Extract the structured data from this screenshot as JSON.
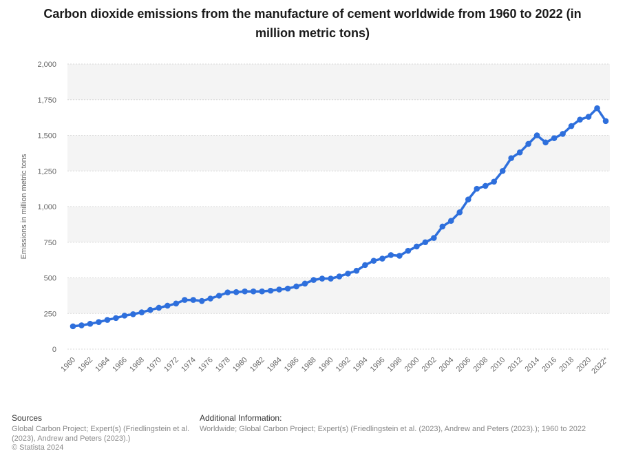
{
  "chart_data": {
    "type": "line",
    "title": "Carbon dioxide emissions from the manufacture of cement worldwide from 1960 to 2022 (in million metric tons)",
    "ylabel": "Emissions in million metric tons",
    "xlabel": "",
    "ylim": [
      0,
      2000
    ],
    "y_ticks": [
      "0",
      "250",
      "500",
      "750",
      "1,000",
      "1,250",
      "1,500",
      "1,750",
      "2,000"
    ],
    "x_tick_labels": [
      "1960",
      "1962",
      "1964",
      "1966",
      "1968",
      "1970",
      "1972",
      "1974",
      "1976",
      "1978",
      "1980",
      "1982",
      "1984",
      "1986",
      "1988",
      "1990",
      "1992",
      "1994",
      "1996",
      "1998",
      "2000",
      "2002",
      "2004",
      "2006",
      "2008",
      "2010",
      "2012",
      "2014",
      "2016",
      "2018",
      "2020",
      "2022*"
    ],
    "grid": true,
    "legend": "none",
    "color": "#2e6fdc",
    "x": [
      1960,
      1961,
      1962,
      1963,
      1964,
      1965,
      1966,
      1967,
      1968,
      1969,
      1970,
      1971,
      1972,
      1973,
      1974,
      1975,
      1976,
      1977,
      1978,
      1979,
      1980,
      1981,
      1982,
      1983,
      1984,
      1985,
      1986,
      1987,
      1988,
      1989,
      1990,
      1991,
      1992,
      1993,
      1994,
      1995,
      1996,
      1997,
      1998,
      1999,
      2000,
      2001,
      2002,
      2003,
      2004,
      2005,
      2006,
      2007,
      2008,
      2009,
      2010,
      2011,
      2012,
      2013,
      2014,
      2015,
      2016,
      2017,
      2018,
      2019,
      2020,
      2021,
      2022
    ],
    "values": [
      160,
      167,
      178,
      190,
      205,
      218,
      235,
      245,
      258,
      275,
      290,
      305,
      320,
      345,
      345,
      338,
      355,
      375,
      398,
      400,
      405,
      405,
      405,
      410,
      418,
      425,
      440,
      460,
      485,
      495,
      495,
      510,
      530,
      550,
      590,
      620,
      635,
      660,
      655,
      690,
      720,
      750,
      780,
      860,
      900,
      960,
      1050,
      1125,
      1145,
      1175,
      1250,
      1340,
      1380,
      1440,
      1500,
      1450,
      1480,
      1510,
      1565,
      1610,
      1630,
      1690,
      1600
    ]
  },
  "footer": {
    "sources_heading": "Sources",
    "sources_text": "Global Carbon Project; Expert(s) (Friedlingstein et al. (2023), Andrew and Peters (2023).)",
    "copyright": "© Statista 2024",
    "additional_heading": "Additional Information:",
    "additional_text": "Worldwide; Global Carbon Project; Expert(s) (Friedlingstein et al. (2023), Andrew and Peters (2023).); 1960 to 2022"
  }
}
